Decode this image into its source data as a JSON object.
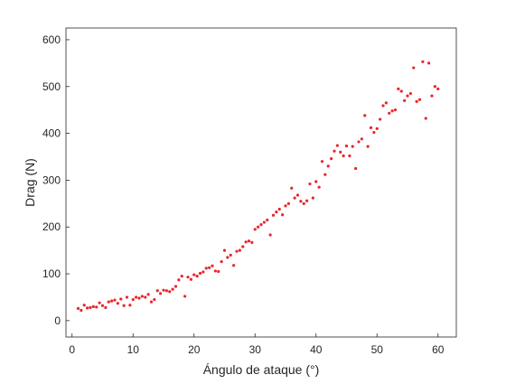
{
  "chart_data": {
    "type": "scatter",
    "title": "",
    "xlabel": "Ángulo de ataque (°)",
    "ylabel": "Drag (N)",
    "xlim": [
      -1,
      63
    ],
    "ylim": [
      -35,
      625
    ],
    "xticks": [
      0,
      10,
      20,
      30,
      40,
      50,
      60
    ],
    "yticks": [
      0,
      100,
      200,
      300,
      400,
      500,
      600
    ],
    "xtick_labels": [
      "0",
      "10",
      "20",
      "30",
      "40",
      "50",
      "60"
    ],
    "ytick_labels": [
      "0",
      "100",
      "200",
      "300",
      "400",
      "500",
      "600"
    ],
    "grid": false,
    "marker_color": "#e8262b",
    "series": [
      {
        "x": [
          1.0,
          1.5,
          2.0,
          2.5,
          3.0,
          3.5,
          4.0,
          4.5,
          5.0,
          5.5,
          6.0,
          6.5,
          7.0,
          7.5,
          8.0,
          8.5,
          9.0,
          9.5,
          10.0,
          10.5,
          11.0,
          11.5,
          12.0,
          12.5,
          13.0,
          13.5,
          14.0,
          14.5,
          15.0,
          15.5,
          16.0,
          16.5,
          17.0,
          17.5,
          18.0,
          18.5,
          19.0,
          19.5,
          20.0,
          20.5,
          21.0,
          21.5,
          22.0,
          22.5,
          23.0,
          23.5,
          24.0,
          24.5,
          25.0,
          25.5,
          26.0,
          26.5,
          27.0,
          27.5,
          28.0,
          28.5,
          29.0,
          29.5,
          30.0,
          30.5,
          31.0,
          31.5,
          32.0,
          32.5,
          33.0,
          33.5,
          34.0,
          34.5,
          35.0,
          35.5,
          36.0,
          36.5,
          37.0,
          37.5,
          38.0,
          38.5,
          39.0,
          39.5,
          40.0,
          40.5,
          41.0,
          41.5,
          42.0,
          42.5,
          43.0,
          43.5,
          44.0,
          44.5,
          45.0,
          45.5,
          46.0,
          46.5,
          47.0,
          47.5,
          48.0,
          48.5,
          49.0,
          49.5,
          50.0,
          50.5,
          51.0,
          51.5,
          52.0,
          52.5,
          53.0,
          53.5,
          54.0,
          54.5,
          55.0,
          55.5,
          56.0,
          56.5,
          57.0,
          57.5,
          58.0,
          58.5,
          59.0,
          59.5,
          60.0
        ],
        "y": [
          26,
          22,
          33,
          27,
          28,
          30,
          29,
          38,
          32,
          28,
          40,
          42,
          44,
          37,
          46,
          32,
          50,
          33,
          45,
          50,
          48,
          52,
          50,
          56,
          40,
          45,
          64,
          58,
          65,
          64,
          62,
          67,
          73,
          87,
          95,
          52,
          93,
          88,
          98,
          95,
          101,
          104,
          112,
          113,
          117,
          106,
          105,
          126,
          150,
          135,
          140,
          118,
          148,
          150,
          158,
          168,
          170,
          167,
          195,
          200,
          205,
          210,
          215,
          183,
          225,
          232,
          238,
          226,
          245,
          250,
          283,
          262,
          268,
          255,
          250,
          256,
          292,
          262,
          297,
          285,
          340,
          312,
          330,
          346,
          362,
          374,
          360,
          352,
          373,
          352,
          372,
          325,
          382,
          388,
          438,
          372,
          412,
          402,
          410,
          430,
          459,
          465,
          443,
          448,
          450,
          495,
          490,
          470,
          480,
          485,
          540,
          468,
          472,
          553,
          432,
          550,
          480,
          500,
          495
        ]
      }
    ]
  }
}
